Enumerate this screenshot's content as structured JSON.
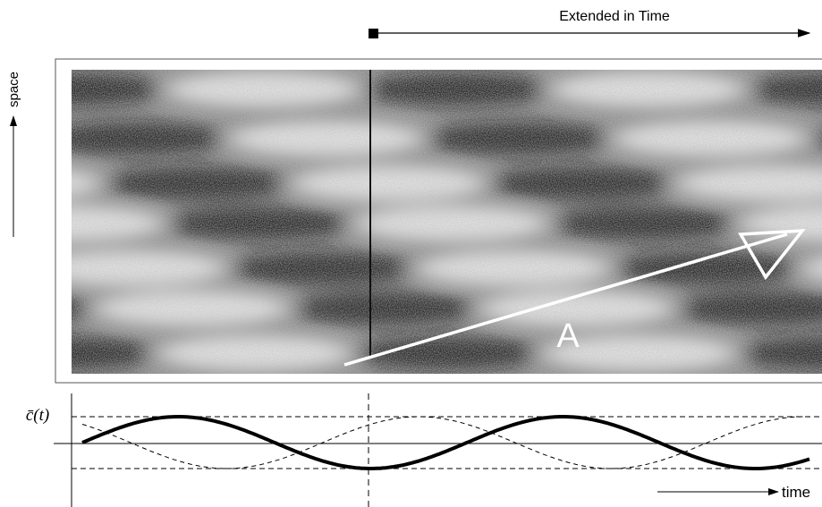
{
  "header": {
    "title": "Extended in Time"
  },
  "labels": {
    "space": "space",
    "annotation": "A",
    "y_axis": "c̄(t)",
    "x_axis": "time"
  }
}
